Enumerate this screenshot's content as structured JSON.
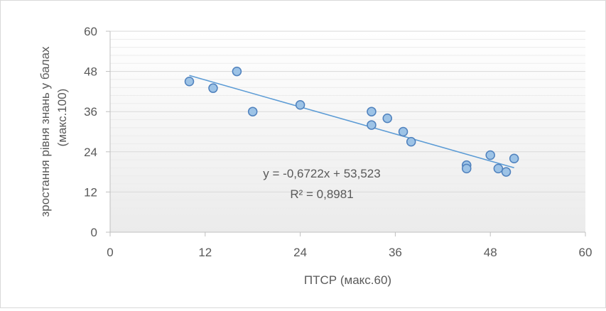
{
  "chart_data": {
    "type": "scatter",
    "title": "",
    "xlabel": "ПТСР  (макс.60)",
    "ylabel_line1": "зростання рівня знань у балах",
    "ylabel_line2": "(макс.100)",
    "xlim": [
      0,
      60
    ],
    "ylim": [
      0,
      60
    ],
    "x_ticks": [
      0,
      12,
      24,
      36,
      48,
      60
    ],
    "y_ticks": [
      0,
      12,
      24,
      36,
      48,
      60
    ],
    "grid": true,
    "legend": "none",
    "marker_color": "#9dc3e6",
    "marker_edge": "#4f81bd",
    "trend_color": "#5b9bd5",
    "points": [
      {
        "x": 10,
        "y": 45
      },
      {
        "x": 13,
        "y": 43
      },
      {
        "x": 16,
        "y": 48
      },
      {
        "x": 18,
        "y": 36
      },
      {
        "x": 24,
        "y": 38
      },
      {
        "x": 33,
        "y": 36
      },
      {
        "x": 33,
        "y": 32
      },
      {
        "x": 35,
        "y": 34
      },
      {
        "x": 37,
        "y": 30
      },
      {
        "x": 38,
        "y": 27
      },
      {
        "x": 45,
        "y": 20
      },
      {
        "x": 45,
        "y": 19
      },
      {
        "x": 48,
        "y": 23
      },
      {
        "x": 49,
        "y": 19
      },
      {
        "x": 50,
        "y": 18
      },
      {
        "x": 51,
        "y": 22
      }
    ],
    "trendline": {
      "slope": -0.6722,
      "intercept": 53.523,
      "x_range": [
        10,
        51
      ],
      "equation_label": "y = -0,6722x + 53,523",
      "r2_label": "R² = 0,8981"
    }
  }
}
